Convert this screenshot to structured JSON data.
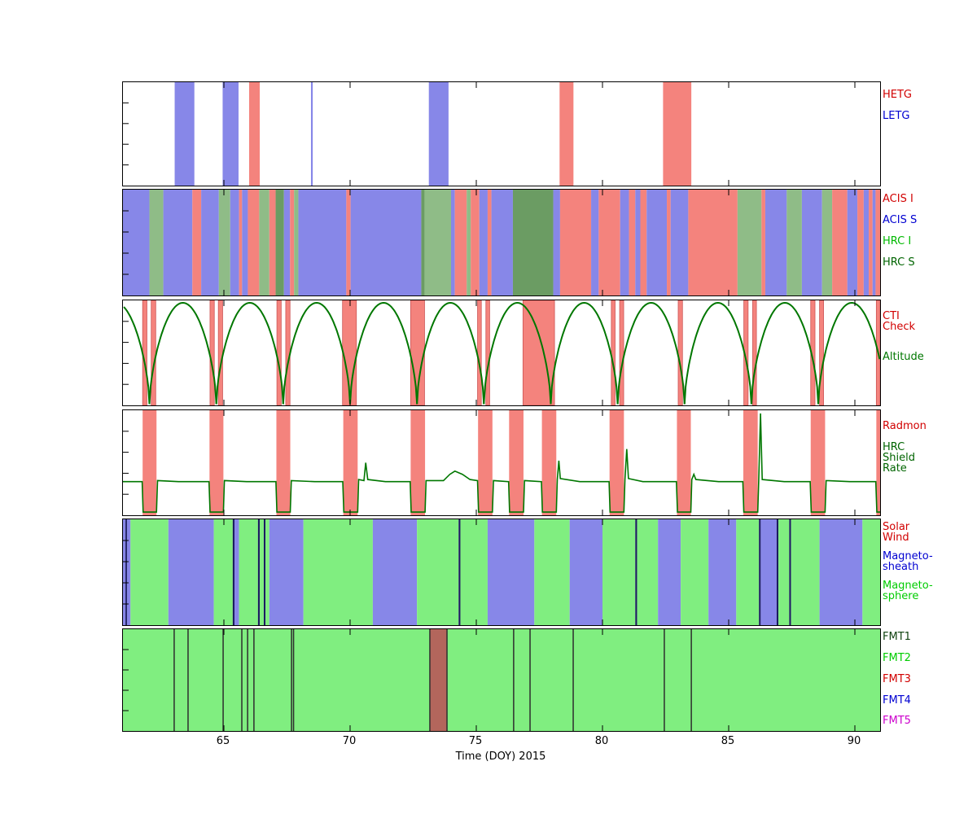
{
  "xlabel": "Time (DOY) 2015",
  "axis": {
    "xmin": 61.0,
    "xmax": 91.0,
    "xticks": [
      65,
      70,
      75,
      80,
      85,
      90
    ]
  },
  "colors": {
    "band_red": "#f4837d",
    "band_blue": "#8787e8",
    "band_green": "#8fbc87",
    "band_dkgreen": "#6b9c63",
    "sphere_green": "#80ee80",
    "dark_line": "#1b1b60",
    "fmt_brown": "#b3665c",
    "fmt_line": "#2e2e2e",
    "curve_green": "#007700",
    "cti_edge": "#cc5555"
  },
  "chart_data": [
    {
      "name": "gratings",
      "type": "intervals",
      "xlim": [
        61.0,
        91.0
      ],
      "legend": [
        {
          "lines": [
            "HETG"
          ],
          "color": "#d10000",
          "dy": 10
        },
        {
          "lines": [
            "LETG"
          ],
          "color": "#0000d1",
          "dy": 36
        }
      ],
      "bands": [
        [
          63.05,
          63.83,
          "LETG"
        ],
        [
          64.95,
          65.58,
          "LETG"
        ],
        [
          66.0,
          66.42,
          "HETG"
        ],
        [
          68.45,
          68.52,
          "LETG"
        ],
        [
          73.12,
          73.9,
          "LETG"
        ],
        [
          78.3,
          78.85,
          "HETG"
        ],
        [
          82.4,
          83.52,
          "HETG"
        ]
      ]
    },
    {
      "name": "instruments",
      "type": "intervals",
      "xlim": [
        61.0,
        91.0
      ],
      "legend": [
        {
          "lines": [
            "ACIS I"
          ],
          "color": "#d10000",
          "dy": 6
        },
        {
          "lines": [
            "ACIS S"
          ],
          "color": "#0000d1",
          "dy": 32
        },
        {
          "lines": [
            "HRC I"
          ],
          "color": "#00b900",
          "dy": 58
        },
        {
          "lines": [
            "HRC S"
          ],
          "color": "#006400",
          "dy": 84
        }
      ],
      "segments": [
        [
          61.0,
          62.05,
          "S"
        ],
        [
          62.05,
          62.6,
          "HI"
        ],
        [
          62.6,
          63.75,
          "S"
        ],
        [
          63.75,
          64.1,
          "I"
        ],
        [
          64.1,
          64.8,
          "S"
        ],
        [
          64.8,
          65.25,
          "HI"
        ],
        [
          65.25,
          65.6,
          "S"
        ],
        [
          65.6,
          65.72,
          "I"
        ],
        [
          65.72,
          65.95,
          "S"
        ],
        [
          65.95,
          66.4,
          "I"
        ],
        [
          66.4,
          66.8,
          "HI"
        ],
        [
          66.8,
          67.05,
          "I"
        ],
        [
          67.05,
          67.38,
          "HS"
        ],
        [
          67.38,
          67.62,
          "S"
        ],
        [
          67.62,
          67.78,
          "I"
        ],
        [
          67.78,
          67.95,
          "HI"
        ],
        [
          67.95,
          69.85,
          "S"
        ],
        [
          69.85,
          70.02,
          "I"
        ],
        [
          70.02,
          72.82,
          "S"
        ],
        [
          72.82,
          72.95,
          "HS"
        ],
        [
          72.95,
          74.0,
          "HI"
        ],
        [
          74.0,
          74.15,
          "S"
        ],
        [
          74.15,
          74.62,
          "I"
        ],
        [
          74.62,
          74.78,
          "HI"
        ],
        [
          74.78,
          75.12,
          "I"
        ],
        [
          75.12,
          75.45,
          "S"
        ],
        [
          75.45,
          75.6,
          "I"
        ],
        [
          75.6,
          76.45,
          "S"
        ],
        [
          76.45,
          78.05,
          "HS"
        ],
        [
          78.05,
          78.32,
          "S"
        ],
        [
          78.32,
          79.55,
          "I"
        ],
        [
          79.55,
          79.85,
          "S"
        ],
        [
          79.85,
          80.7,
          "I"
        ],
        [
          80.7,
          81.05,
          "S"
        ],
        [
          81.05,
          81.3,
          "I"
        ],
        [
          81.3,
          81.5,
          "S"
        ],
        [
          81.5,
          81.75,
          "I"
        ],
        [
          81.75,
          82.55,
          "S"
        ],
        [
          82.55,
          82.7,
          "I"
        ],
        [
          82.7,
          83.4,
          "S"
        ],
        [
          83.4,
          85.35,
          "I"
        ],
        [
          85.35,
          86.3,
          "HI"
        ],
        [
          86.3,
          86.45,
          "I"
        ],
        [
          86.45,
          87.3,
          "S"
        ],
        [
          87.3,
          87.9,
          "HI"
        ],
        [
          87.9,
          88.7,
          "S"
        ],
        [
          88.7,
          89.1,
          "HI"
        ],
        [
          89.1,
          89.7,
          "I"
        ],
        [
          89.7,
          90.1,
          "S"
        ],
        [
          90.1,
          90.35,
          "I"
        ],
        [
          90.35,
          90.55,
          "S"
        ],
        [
          90.55,
          90.7,
          "I"
        ],
        [
          90.7,
          90.82,
          "S"
        ],
        [
          90.82,
          91.0,
          "I"
        ]
      ]
    },
    {
      "name": "cti_altitude",
      "type": "bands_plus_curve",
      "xlim": [
        61.0,
        91.0
      ],
      "legend": [
        {
          "lines": [
            "CTI",
            "Check"
          ],
          "color": "#d10000",
          "dy": 14
        },
        {
          "lines": [
            "Altitude"
          ],
          "color": "#007700",
          "dy": 64
        }
      ],
      "bands": [
        [
          61.78,
          61.95,
          "CTI"
        ],
        [
          62.12,
          62.3,
          "CTI"
        ],
        [
          64.45,
          64.62,
          "CTI"
        ],
        [
          64.78,
          64.95,
          "CTI"
        ],
        [
          67.1,
          67.27,
          "CTI"
        ],
        [
          67.45,
          67.62,
          "CTI"
        ],
        [
          69.7,
          70.25,
          "CTI"
        ],
        [
          72.4,
          72.95,
          "CTI"
        ],
        [
          75.05,
          75.2,
          "CTI"
        ],
        [
          75.38,
          75.53,
          "CTI"
        ],
        [
          76.85,
          78.1,
          "CTI"
        ],
        [
          80.35,
          80.5,
          "CTI"
        ],
        [
          80.68,
          80.84,
          "CTI"
        ],
        [
          83.0,
          83.17,
          "CTI"
        ],
        [
          85.6,
          85.77,
          "CTI"
        ],
        [
          85.95,
          86.1,
          "CTI"
        ],
        [
          88.25,
          88.42,
          "CTI"
        ],
        [
          88.6,
          88.76,
          "CTI"
        ],
        [
          90.85,
          91.0,
          "CTI"
        ]
      ],
      "perigees": [
        59.4,
        62.05,
        64.7,
        67.35,
        70.0,
        72.65,
        75.3,
        77.95,
        80.6,
        83.25,
        85.9,
        88.55,
        91.2,
        93.85
      ]
    },
    {
      "name": "radmon_shield",
      "type": "bands_plus_line",
      "xlim": [
        61.0,
        91.0
      ],
      "legend": [
        {
          "lines": [
            "Radmon"
          ],
          "color": "#d10000",
          "dy": 14
        },
        {
          "lines": [
            "HRC",
            "Shield",
            "Rate"
          ],
          "color": "#006400",
          "dy": 40
        }
      ],
      "bands": [
        [
          61.78,
          62.33,
          "RAD"
        ],
        [
          64.43,
          64.98,
          "RAD"
        ],
        [
          67.08,
          67.63,
          "RAD"
        ],
        [
          69.73,
          70.3,
          "RAD"
        ],
        [
          72.4,
          72.97,
          "RAD"
        ],
        [
          75.07,
          75.64,
          "RAD"
        ],
        [
          76.3,
          76.87,
          "RAD"
        ],
        [
          77.6,
          78.17,
          "RAD"
        ],
        [
          80.28,
          80.85,
          "RAD"
        ],
        [
          82.95,
          83.5,
          "RAD"
        ],
        [
          85.58,
          86.15,
          "RAD"
        ],
        [
          88.25,
          88.82,
          "RAD"
        ],
        [
          90.85,
          91.0,
          "RAD"
        ]
      ],
      "line_points": [
        [
          61.0,
          0.32
        ],
        [
          61.76,
          0.32
        ],
        [
          61.8,
          0.03
        ],
        [
          62.33,
          0.03
        ],
        [
          62.37,
          0.33
        ],
        [
          63.2,
          0.32
        ],
        [
          64.41,
          0.32
        ],
        [
          64.45,
          0.03
        ],
        [
          64.98,
          0.03
        ],
        [
          65.02,
          0.33
        ],
        [
          65.9,
          0.32
        ],
        [
          67.06,
          0.32
        ],
        [
          67.1,
          0.03
        ],
        [
          67.63,
          0.03
        ],
        [
          67.67,
          0.33
        ],
        [
          68.6,
          0.32
        ],
        [
          69.71,
          0.32
        ],
        [
          69.75,
          0.03
        ],
        [
          70.3,
          0.03
        ],
        [
          70.34,
          0.34
        ],
        [
          70.55,
          0.33
        ],
        [
          70.62,
          0.5
        ],
        [
          70.7,
          0.34
        ],
        [
          71.4,
          0.32
        ],
        [
          72.38,
          0.32
        ],
        [
          72.42,
          0.03
        ],
        [
          72.97,
          0.03
        ],
        [
          73.01,
          0.33
        ],
        [
          73.7,
          0.33
        ],
        [
          73.95,
          0.39
        ],
        [
          74.15,
          0.42
        ],
        [
          74.45,
          0.39
        ],
        [
          74.75,
          0.34
        ],
        [
          75.05,
          0.33
        ],
        [
          75.09,
          0.03
        ],
        [
          75.64,
          0.03
        ],
        [
          75.68,
          0.33
        ],
        [
          76.28,
          0.32
        ],
        [
          76.32,
          0.03
        ],
        [
          76.87,
          0.03
        ],
        [
          76.91,
          0.33
        ],
        [
          77.58,
          0.32
        ],
        [
          77.62,
          0.03
        ],
        [
          78.17,
          0.03
        ],
        [
          78.21,
          0.34
        ],
        [
          78.27,
          0.52
        ],
        [
          78.33,
          0.35
        ],
        [
          79.1,
          0.32
        ],
        [
          80.26,
          0.32
        ],
        [
          80.3,
          0.03
        ],
        [
          80.85,
          0.03
        ],
        [
          80.89,
          0.34
        ],
        [
          80.96,
          0.63
        ],
        [
          81.03,
          0.35
        ],
        [
          81.6,
          0.32
        ],
        [
          82.93,
          0.32
        ],
        [
          82.97,
          0.03
        ],
        [
          83.5,
          0.03
        ],
        [
          83.54,
          0.34
        ],
        [
          83.62,
          0.39
        ],
        [
          83.7,
          0.34
        ],
        [
          84.6,
          0.32
        ],
        [
          85.56,
          0.32
        ],
        [
          85.6,
          0.03
        ],
        [
          86.15,
          0.03
        ],
        [
          86.19,
          0.33
        ],
        [
          86.26,
          0.97
        ],
        [
          86.33,
          0.34
        ],
        [
          87.2,
          0.32
        ],
        [
          88.23,
          0.32
        ],
        [
          88.27,
          0.03
        ],
        [
          88.82,
          0.03
        ],
        [
          88.86,
          0.33
        ],
        [
          89.8,
          0.32
        ],
        [
          90.83,
          0.32
        ],
        [
          90.87,
          0.03
        ],
        [
          91.0,
          0.03
        ]
      ]
    },
    {
      "name": "solar_wind_regions",
      "type": "intervals",
      "xlim": [
        61.0,
        91.0
      ],
      "legend": [
        {
          "lines": [
            "Solar",
            "Wind"
          ],
          "color": "#d10000",
          "dy": 4
        },
        {
          "lines": [
            "Magneto-",
            "sheath"
          ],
          "color": "#0000d1",
          "dy": 40
        },
        {
          "lines": [
            "Magneto-",
            "sphere"
          ],
          "color": "#00cc00",
          "dy": 76
        }
      ],
      "segments": [
        [
          61.0,
          61.1,
          "sheath"
        ],
        [
          61.1,
          61.16,
          "dark"
        ],
        [
          61.16,
          61.3,
          "sheath"
        ],
        [
          61.3,
          62.8,
          "sphere"
        ],
        [
          62.8,
          64.6,
          "sheath"
        ],
        [
          64.6,
          65.35,
          "sphere"
        ],
        [
          65.35,
          65.42,
          "dark"
        ],
        [
          65.42,
          65.6,
          "sheath"
        ],
        [
          65.6,
          66.35,
          "sphere"
        ],
        [
          66.35,
          66.42,
          "dark"
        ],
        [
          66.42,
          66.58,
          "sphere"
        ],
        [
          66.58,
          66.65,
          "dark"
        ],
        [
          66.65,
          66.8,
          "sphere"
        ],
        [
          66.8,
          68.15,
          "sheath"
        ],
        [
          68.15,
          70.9,
          "sphere"
        ],
        [
          70.9,
          72.65,
          "sheath"
        ],
        [
          72.65,
          74.3,
          "sphere"
        ],
        [
          74.3,
          74.37,
          "dark"
        ],
        [
          74.37,
          75.45,
          "sphere"
        ],
        [
          75.45,
          77.3,
          "sheath"
        ],
        [
          77.3,
          78.7,
          "sphere"
        ],
        [
          78.7,
          80.0,
          "sheath"
        ],
        [
          80.0,
          81.3,
          "sphere"
        ],
        [
          81.3,
          81.37,
          "dark"
        ],
        [
          81.37,
          82.2,
          "sphere"
        ],
        [
          82.2,
          83.1,
          "sheath"
        ],
        [
          83.1,
          84.2,
          "sphere"
        ],
        [
          84.2,
          85.3,
          "sheath"
        ],
        [
          85.3,
          86.2,
          "sphere"
        ],
        [
          86.2,
          86.27,
          "dark"
        ],
        [
          86.27,
          86.9,
          "sheath"
        ],
        [
          86.9,
          86.97,
          "dark"
        ],
        [
          86.97,
          87.4,
          "sphere"
        ],
        [
          87.4,
          87.47,
          "dark"
        ],
        [
          87.47,
          88.6,
          "sphere"
        ],
        [
          88.6,
          90.3,
          "sheath"
        ],
        [
          90.3,
          91.0,
          "sphere"
        ]
      ]
    },
    {
      "name": "fmt",
      "type": "intervals",
      "xlim": [
        61.0,
        91.0
      ],
      "background": "sphere",
      "legend": [
        {
          "lines": [
            "FMT1"
          ],
          "color": "#114411",
          "dy": 4
        },
        {
          "lines": [
            "FMT2"
          ],
          "color": "#00cc00",
          "dy": 30
        },
        {
          "lines": [
            "FMT3"
          ],
          "color": "#d10000",
          "dy": 56
        },
        {
          "lines": [
            "FMT4"
          ],
          "color": "#0000d1",
          "dy": 82
        },
        {
          "lines": [
            "FMT5"
          ],
          "color": "#cc00cc",
          "dy": 107
        }
      ],
      "bands": [
        [
          73.16,
          73.84,
          "FMT3"
        ]
      ],
      "vlines": [
        63.03,
        63.58,
        64.97,
        65.71,
        65.94,
        66.19,
        67.68,
        67.76,
        73.16,
        73.84,
        76.48,
        77.13,
        78.84,
        82.45,
        83.52
      ]
    }
  ]
}
